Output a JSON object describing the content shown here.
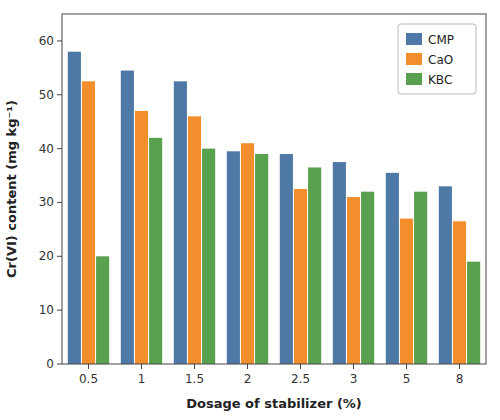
{
  "chart_data": {
    "type": "bar",
    "categories": [
      "0.5",
      "1",
      "1.5",
      "2",
      "2.5",
      "3",
      "5",
      "8"
    ],
    "series": [
      {
        "name": "CMP",
        "values": [
          58,
          54.5,
          52.5,
          39.5,
          39,
          37.5,
          35.5,
          33
        ]
      },
      {
        "name": "CaO",
        "values": [
          52.5,
          47,
          46,
          41,
          32.5,
          31,
          27,
          26.5
        ]
      },
      {
        "name": "KBC",
        "values": [
          20,
          42,
          40,
          39,
          36.5,
          32,
          32,
          19
        ]
      }
    ],
    "xlabel": "Dosage of stabilizer (%)",
    "ylabel": "Cr(VI) content (mg kg⁻¹)",
    "ylim": [
      0,
      65
    ],
    "yticks": [
      0,
      10,
      20,
      30,
      40,
      50,
      60
    ],
    "grid": false,
    "legend": "upper right"
  }
}
